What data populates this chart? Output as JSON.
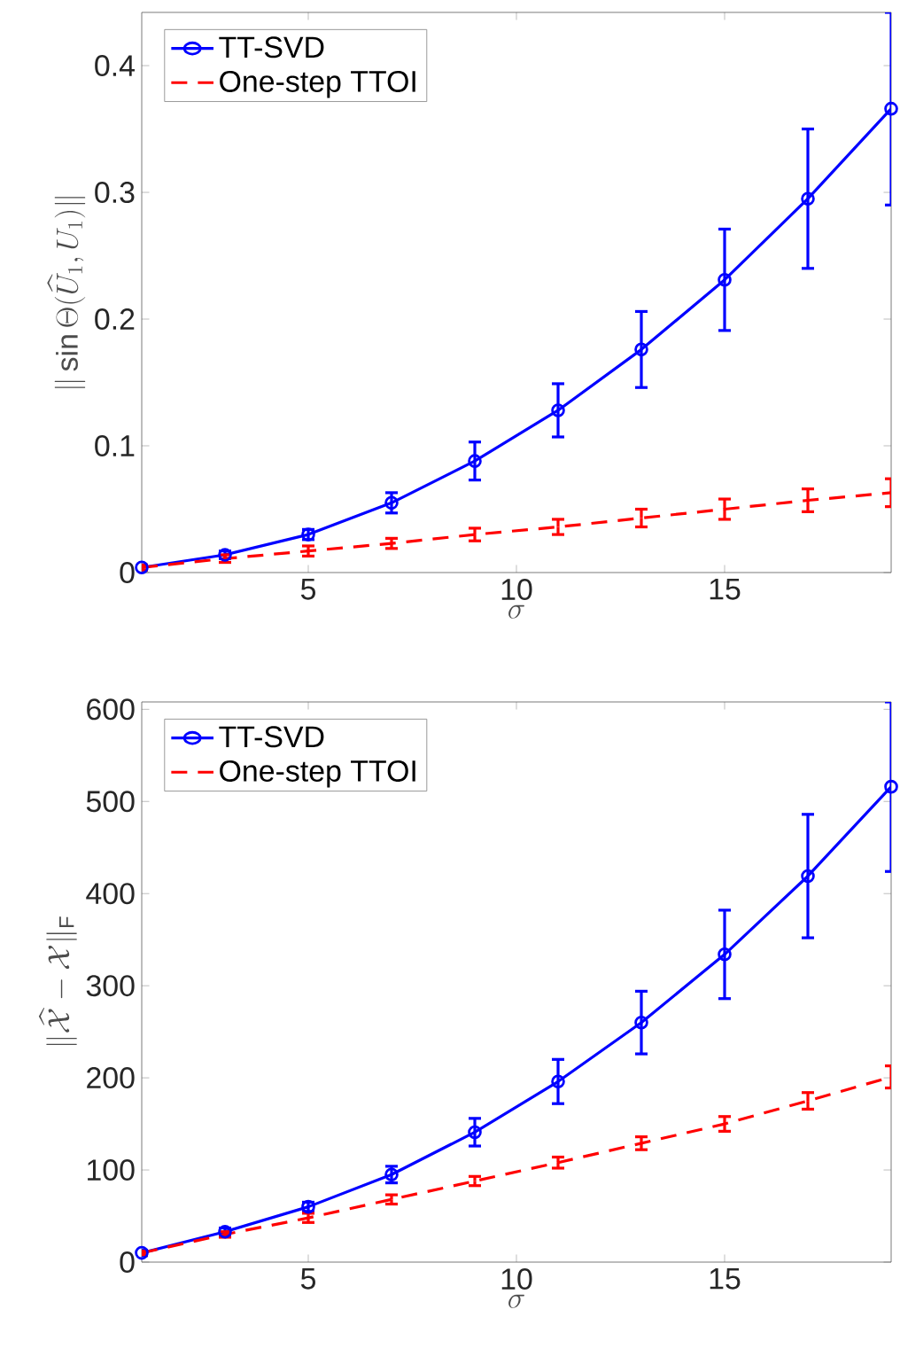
{
  "chart_data": [
    {
      "type": "line",
      "xlabel": "\\sigma",
      "ylabel": "\\|\\sin\\Theta(\\widehat{U}_1,U_1)\\|",
      "x": [
        1,
        3,
        5,
        7,
        9,
        11,
        13,
        15,
        17,
        19
      ],
      "xlim": [
        1,
        19
      ],
      "ylim": [
        0,
        0.442
      ],
      "xticks": [
        5,
        10,
        15
      ],
      "yticks": [
        0,
        0.1,
        0.2,
        0.3,
        0.4
      ],
      "legend": "top left",
      "grid": false,
      "series": [
        {
          "name": "TT-SVD",
          "color": "#0000ff",
          "marker": "circle",
          "line_style": "solid",
          "values": [
            0.004,
            0.014,
            0.03,
            0.055,
            0.088,
            0.128,
            0.176,
            0.231,
            0.295,
            0.366
          ],
          "errors": [
            0.002,
            0.003,
            0.004,
            0.008,
            0.015,
            0.021,
            0.03,
            0.04,
            0.055,
            0.076
          ]
        },
        {
          "name": "One-step TTOI",
          "color": "#ff0000",
          "marker": "none",
          "line_style": "dashed",
          "values": [
            0.004,
            0.011,
            0.017,
            0.023,
            0.03,
            0.036,
            0.043,
            0.05,
            0.057,
            0.063
          ],
          "errors": [
            0.002,
            0.003,
            0.004,
            0.004,
            0.005,
            0.006,
            0.007,
            0.008,
            0.009,
            0.011
          ]
        }
      ]
    },
    {
      "type": "line",
      "xlabel": "\\sigma",
      "ylabel": "\\|\\widehat{\\mathcal{X}}-\\mathcal{X}\\|_{\\mathrm{F}}",
      "x": [
        1,
        3,
        5,
        7,
        9,
        11,
        13,
        15,
        17,
        19
      ],
      "xlim": [
        1,
        19
      ],
      "ylim": [
        0,
        608
      ],
      "xticks": [
        5,
        10,
        15
      ],
      "yticks": [
        0,
        100,
        200,
        300,
        400,
        500,
        600
      ],
      "legend": "top left",
      "grid": false,
      "series": [
        {
          "name": "TT-SVD",
          "color": "#0000ff",
          "marker": "circle",
          "line_style": "solid",
          "values": [
            10,
            33,
            60,
            95,
            141,
            196,
            260,
            334,
            419,
            516
          ],
          "errors": [
            3,
            4,
            5,
            9,
            15,
            24,
            34,
            48,
            67,
            92
          ]
        },
        {
          "name": "One-step TTOI",
          "color": "#ff0000",
          "marker": "none",
          "line_style": "dashed",
          "values": [
            10,
            30,
            48,
            68,
            88,
            108,
            129,
            150,
            175,
            201
          ],
          "errors": [
            2,
            3,
            5,
            5,
            5,
            6,
            7,
            8,
            9,
            12
          ]
        }
      ]
    }
  ]
}
